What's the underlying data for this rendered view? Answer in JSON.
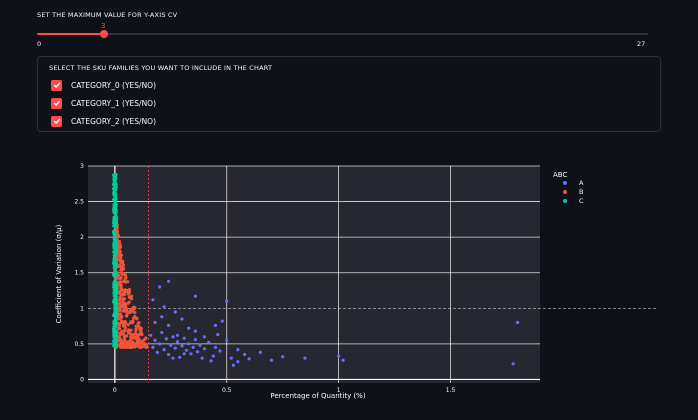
{
  "slider": {
    "label": "SET THE MAXIMUM VALUE FOR Y-AXIS CV",
    "value": "3",
    "min_label": "0",
    "max_label": "27",
    "fraction": 0.111,
    "accent_color": "#ff4b4b"
  },
  "filter": {
    "label": "SELECT THE SKU FAMILIES YOU WANT TO INCLUDE IN THE CHART",
    "options": [
      {
        "label": "CATEGORY_0 (YES/NO)",
        "checked": true
      },
      {
        "label": "CATEGORY_1 (YES/NO)",
        "checked": true
      },
      {
        "label": "CATEGORY_2 (YES/NO)",
        "checked": true
      }
    ]
  },
  "chart_data": {
    "type": "scatter",
    "xlabel": "Percentage of Quantity (%)",
    "ylabel": "Coefficient of Variation (σ/μ)",
    "xlim": [
      -0.12,
      1.9
    ],
    "ylim": [
      -0.05,
      3.0
    ],
    "x_ticks": [
      "0",
      "0.5",
      "1",
      "1.5"
    ],
    "x_tick_values": [
      0,
      0.5,
      1,
      1.5
    ],
    "y_ticks": [
      "0",
      "0.5",
      "1",
      "1.5",
      "2",
      "2.5",
      "3"
    ],
    "y_tick_values": [
      0,
      0.5,
      1,
      1.5,
      2,
      2.5,
      3
    ],
    "vline_x": 0.15,
    "hline_y": 1,
    "legend_title": "ABC",
    "legend_position": "right",
    "series": [
      {
        "name": "A",
        "color": "#636efa",
        "points": [
          [
            0.16,
            0.62
          ],
          [
            0.17,
            0.45
          ],
          [
            0.18,
            0.55
          ],
          [
            0.19,
            0.38
          ],
          [
            0.2,
            0.5
          ],
          [
            0.21,
            0.66
          ],
          [
            0.22,
            0.42
          ],
          [
            0.23,
            0.57
          ],
          [
            0.24,
            0.35
          ],
          [
            0.25,
            0.48
          ],
          [
            0.26,
            0.6
          ],
          [
            0.27,
            0.44
          ],
          [
            0.28,
            0.53
          ],
          [
            0.29,
            0.31
          ],
          [
            0.3,
            0.47
          ],
          [
            0.31,
            0.58
          ],
          [
            0.32,
            0.41
          ],
          [
            0.33,
            0.5
          ],
          [
            0.34,
            0.36
          ],
          [
            0.35,
            0.45
          ],
          [
            0.36,
            0.56
          ],
          [
            0.37,
            0.39
          ],
          [
            0.38,
            0.48
          ],
          [
            0.4,
            0.43
          ],
          [
            0.42,
            0.52
          ],
          [
            0.44,
            0.33
          ],
          [
            0.45,
            0.45
          ],
          [
            0.47,
            0.4
          ],
          [
            0.5,
            0.55
          ],
          [
            0.52,
            0.3
          ],
          [
            0.55,
            0.42
          ],
          [
            0.58,
            0.35
          ],
          [
            0.6,
            0.29
          ],
          [
            0.65,
            0.38
          ],
          [
            0.7,
            0.27
          ],
          [
            0.18,
            0.8
          ],
          [
            0.21,
            0.88
          ],
          [
            0.24,
            0.76
          ],
          [
            0.27,
            0.95
          ],
          [
            0.3,
            0.85
          ],
          [
            0.33,
            0.72
          ],
          [
            0.36,
            0.68
          ],
          [
            0.45,
            0.76
          ],
          [
            0.48,
            0.82
          ],
          [
            0.5,
            1.1
          ],
          [
            0.36,
            1.17
          ],
          [
            0.2,
            1.3
          ],
          [
            0.24,
            1.38
          ],
          [
            0.17,
            1.12
          ],
          [
            0.22,
            1.02
          ],
          [
            0.28,
            0.62
          ],
          [
            0.4,
            0.6
          ],
          [
            0.46,
            0.63
          ],
          [
            0.55,
            0.25
          ],
          [
            0.53,
            0.2
          ],
          [
            0.85,
            0.3
          ],
          [
            0.75,
            0.32
          ],
          [
            1.0,
            0.33
          ],
          [
            1.02,
            0.27
          ],
          [
            1.78,
            0.22
          ],
          [
            1.8,
            0.8
          ],
          [
            0.43,
            0.26
          ],
          [
            0.39,
            0.3
          ],
          [
            0.26,
            0.3
          ],
          [
            0.31,
            0.36
          ]
        ]
      },
      {
        "name": "B",
        "color": "#ef553b",
        "points": []
      },
      {
        "name": "C",
        "color": "#00cc96",
        "points": []
      }
    ]
  }
}
